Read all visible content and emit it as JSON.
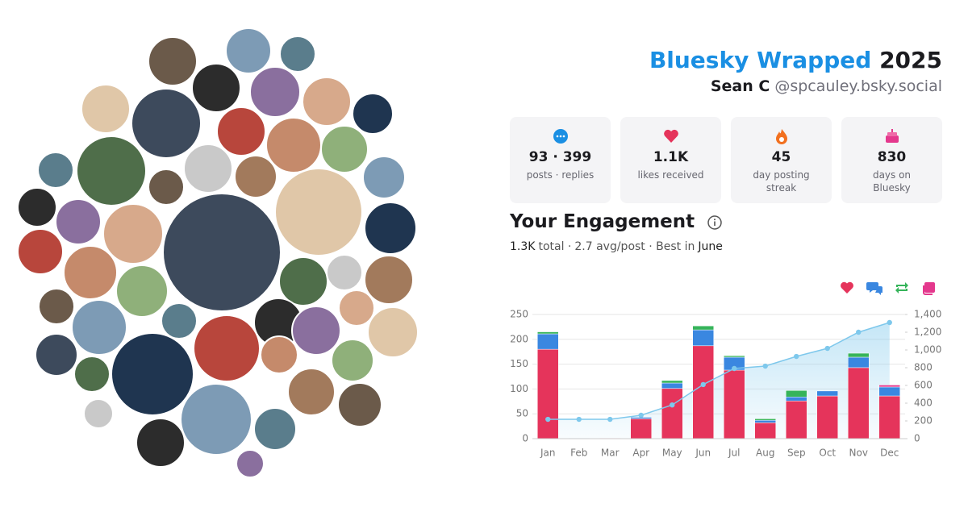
{
  "header": {
    "title": "Bluesky Wrapped",
    "year": "2025",
    "name": "Sean C",
    "handle": "@spcauley.bsky.social"
  },
  "stats": [
    {
      "value": "93 · 399",
      "label": "posts · replies"
    },
    {
      "value": "1.1K",
      "label": "likes received"
    },
    {
      "value": "45",
      "label": "day posting streak"
    },
    {
      "value": "830",
      "label": "days on Bluesky"
    }
  ],
  "engagement": {
    "title": "Your Engagement",
    "summary": [
      "1.3K",
      "total ·",
      "2.7 avg/post · Best in",
      "June"
    ]
  },
  "chart_data": {
    "type": "bar",
    "stacked": true,
    "categories": [
      "Jan",
      "Feb",
      "Mar",
      "Apr",
      "May",
      "Jun",
      "Jul",
      "Aug",
      "Sep",
      "Oct",
      "Nov",
      "Dec"
    ],
    "series": [
      {
        "color": "#e5345b",
        "values": [
          180,
          0,
          0,
          40,
          101,
          187,
          138,
          32,
          76,
          86,
          143,
          86
        ]
      },
      {
        "color": "#3a87e0",
        "values": [
          31,
          1,
          0,
          3,
          11,
          32,
          26,
          5,
          8,
          10,
          21,
          18
        ]
      },
      {
        "color": "#36b45a",
        "values": [
          4,
          0,
          0,
          0,
          5,
          8,
          3,
          3,
          13,
          0,
          8,
          0
        ]
      },
      {
        "color": "#e4388d",
        "values": [
          0,
          0,
          1,
          0,
          0,
          0,
          0,
          0,
          0,
          0,
          0,
          4
        ]
      },
      {
        "type": "line",
        "axis": "y2",
        "color": "#7ec8ec",
        "values": [
          218,
          218,
          218,
          264,
          380,
          610,
          791,
          818,
          927,
          1018,
          1200,
          1309
        ]
      }
    ],
    "ylim": [
      0,
      250
    ],
    "yticks": [
      0,
      50,
      100,
      150,
      200,
      250
    ],
    "y2lim": [
      0,
      1400
    ],
    "y2ticks": [
      0,
      200,
      400,
      600,
      800,
      {
        "value": 1000,
        "label": "1,000"
      },
      {
        "value": 1200,
        "label": "1,200"
      },
      {
        "value": 1400,
        "label": "1,400"
      }
    ],
    "grid": true
  }
}
